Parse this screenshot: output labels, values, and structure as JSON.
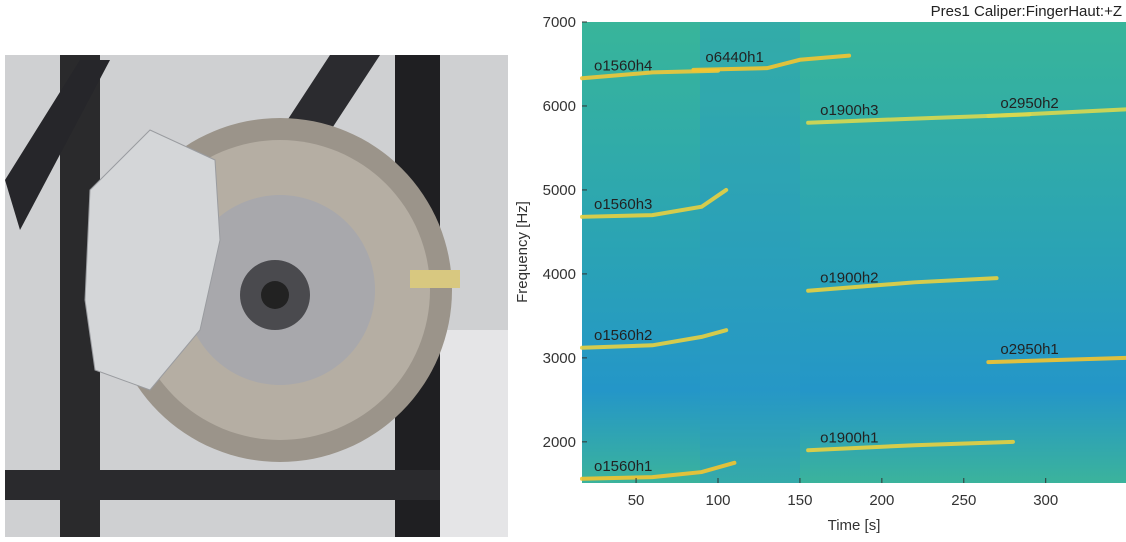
{
  "chart_data": {
    "type": "spectrogram",
    "title": "Pres1 Caliper:FingerHaut:+Z",
    "x_label": "Time [s]",
    "y_label": "Frequency [Hz]",
    "xlim": [
      17,
      349
    ],
    "ylim": [
      1510,
      7000
    ],
    "xticks": [
      50,
      100,
      150,
      200,
      250,
      300
    ],
    "yticks": [
      2000,
      3000,
      4000,
      5000,
      6000,
      7000
    ],
    "series": [
      {
        "name": "o1560h1",
        "color": "#f4c430",
        "x": [
          17,
          60,
          90,
          110
        ],
        "values": [
          1560,
          1580,
          1640,
          1750
        ]
      },
      {
        "name": "o1560h2",
        "color": "#e8d040",
        "x": [
          17,
          60,
          90,
          105
        ],
        "values": [
          3120,
          3150,
          3250,
          3330
        ]
      },
      {
        "name": "o1560h3",
        "color": "#e8d040",
        "x": [
          17,
          60,
          90,
          105
        ],
        "values": [
          4680,
          4700,
          4800,
          5000
        ]
      },
      {
        "name": "o1560h4",
        "color": "#f0c838",
        "x": [
          17,
          60,
          100
        ],
        "values": [
          6330,
          6400,
          6420
        ]
      },
      {
        "name": "o6440h1",
        "color": "#f4c430",
        "x": [
          85,
          130,
          150,
          180
        ],
        "values": [
          6430,
          6450,
          6550,
          6600
        ]
      },
      {
        "name": "o1900h1",
        "color": "#e8d040",
        "x": [
          155,
          220,
          280
        ],
        "values": [
          1900,
          1960,
          2000
        ]
      },
      {
        "name": "o1900h2",
        "color": "#e8d040",
        "x": [
          155,
          220,
          270
        ],
        "values": [
          3800,
          3900,
          3950
        ]
      },
      {
        "name": "o1900h3",
        "color": "#d8d850",
        "x": [
          155,
          220,
          290
        ],
        "values": [
          5800,
          5850,
          5900
        ]
      },
      {
        "name": "o2950h1",
        "color": "#f4c430",
        "x": [
          265,
          349
        ],
        "values": [
          2950,
          3000
        ]
      },
      {
        "name": "o2950h2",
        "color": "#d8d850",
        "x": [
          265,
          349
        ],
        "values": [
          5880,
          5960
        ]
      }
    ]
  }
}
